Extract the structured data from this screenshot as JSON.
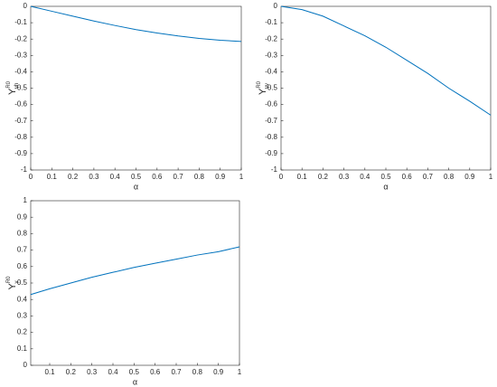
{
  "chart_data": [
    {
      "type": "line",
      "xlabel": "α",
      "ylabel": {
        "symbol": "Υ",
        "sup": "R0",
        "sub": "γh"
      },
      "x": [
        0,
        0.1,
        0.2,
        0.3,
        0.4,
        0.5,
        0.6,
        0.7,
        0.8,
        0.9,
        1
      ],
      "series": [
        {
          "color": "#0072bd",
          "values": [
            0,
            -0.03,
            -0.06,
            -0.09,
            -0.117,
            -0.142,
            -0.163,
            -0.181,
            -0.196,
            -0.207,
            -0.215
          ]
        }
      ],
      "xlim": [
        0,
        1
      ],
      "xticks": [
        0,
        0.1,
        0.2,
        0.3,
        0.4,
        0.5,
        0.6,
        0.7,
        0.8,
        0.9,
        1
      ],
      "ylim": [
        -1,
        0
      ],
      "yticks": [
        -1,
        -0.9,
        -0.8,
        -0.7,
        -0.6,
        -0.5,
        -0.4,
        -0.3,
        -0.2,
        -0.1,
        0
      ]
    },
    {
      "type": "line",
      "xlabel": "α",
      "ylabel": {
        "symbol": "Υ",
        "sup": "R0",
        "sub": "γv"
      },
      "x": [
        0,
        0.1,
        0.2,
        0.3,
        0.4,
        0.5,
        0.6,
        0.7,
        0.8,
        0.9,
        1
      ],
      "series": [
        {
          "color": "#0072bd",
          "values": [
            0,
            -0.02,
            -0.06,
            -0.12,
            -0.18,
            -0.25,
            -0.33,
            -0.41,
            -0.5,
            -0.58,
            -0.665
          ]
        }
      ],
      "xlim": [
        0,
        1
      ],
      "xticks": [
        0,
        0.1,
        0.2,
        0.3,
        0.4,
        0.5,
        0.6,
        0.7,
        0.8,
        0.9,
        1
      ],
      "ylim": [
        -1,
        0
      ],
      "yticks": [
        -1,
        -0.9,
        -0.8,
        -0.7,
        -0.6,
        -0.5,
        -0.4,
        -0.3,
        -0.2,
        -0.1,
        0
      ]
    },
    {
      "type": "line",
      "xlabel": "α",
      "ylabel": {
        "symbol": "Υ",
        "sup": "R0",
        "sub": "γ"
      },
      "x": [
        0.01,
        0.1,
        0.2,
        0.3,
        0.4,
        0.5,
        0.6,
        0.7,
        0.8,
        0.9,
        1
      ],
      "series": [
        {
          "color": "#0072bd",
          "values": [
            0.43,
            0.465,
            0.5,
            0.535,
            0.565,
            0.595,
            0.62,
            0.645,
            0.67,
            0.69,
            0.72
          ]
        }
      ],
      "xlim": [
        0.01,
        1
      ],
      "xticks": [
        0.1,
        0.2,
        0.3,
        0.4,
        0.5,
        0.6,
        0.7,
        0.8,
        0.9,
        1
      ],
      "ylim": [
        0,
        1
      ],
      "yticks": [
        0,
        0.1,
        0.2,
        0.3,
        0.4,
        0.5,
        0.6,
        0.7,
        0.8,
        0.9,
        1
      ]
    }
  ]
}
